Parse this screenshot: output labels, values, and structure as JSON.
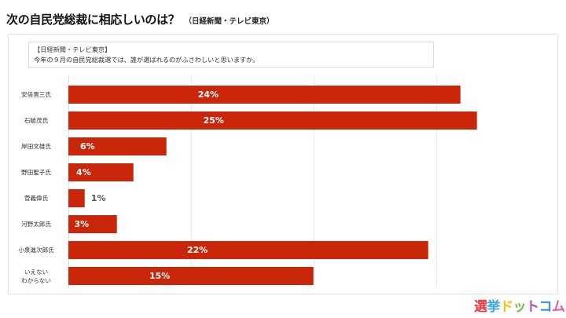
{
  "header": {
    "title": "次の自民党総裁に相応しいのは？",
    "source": "（日経新聞・テレビ東京）"
  },
  "caption": {
    "line1": "【日経新聞・テレビ東京】",
    "line2": "今年の９月の自民党総裁選では、誰が選ばれるのがふさわしいと思いますか。"
  },
  "colors": {
    "bar": "#c9260a",
    "bar_text": "#ffffff",
    "outside_text": "#555555"
  },
  "logo": {
    "chars": [
      {
        "ch": "選",
        "color": "#e8383d"
      },
      {
        "ch": "挙",
        "color": "#3ba9d9"
      },
      {
        "ch": "ド",
        "color": "#f5c200"
      },
      {
        "ch": "ッ",
        "color": "#6cbf3c"
      },
      {
        "ch": "ト",
        "color": "#b04fbf"
      },
      {
        "ch": "コ",
        "color": "#3b8fd9"
      },
      {
        "ch": "ム",
        "color": "#e85aa0"
      }
    ]
  },
  "chart_data": {
    "type": "bar",
    "orientation": "horizontal",
    "title": "次の自民党総裁に相応しいのは？（日経新聞・テレビ東京）",
    "subtitle": "【日経新聞・テレビ東京】今年の９月の自民党総裁選では、誰が選ばれるのがふさわしいと思いますか。",
    "categories": [
      "安倍晋三氏",
      "石破茂氏",
      "岸田文雄氏",
      "野田聖子氏",
      "菅義偉氏",
      "河野太郎氏",
      "小泉進次郎氏",
      "いえない\nわからない"
    ],
    "values": [
      24,
      25,
      6,
      4,
      1,
      3,
      22,
      15
    ],
    "value_labels": [
      "24%",
      "25%",
      "6%",
      "4%",
      "1%",
      "3%",
      "22%",
      "15%"
    ],
    "unit": "%",
    "xlabel": "",
    "ylabel": "",
    "xlim": [
      0,
      30
    ],
    "gridlines_at": [
      7.5,
      15,
      22.5
    ],
    "grid": true,
    "legend": null,
    "data_labels": true
  }
}
